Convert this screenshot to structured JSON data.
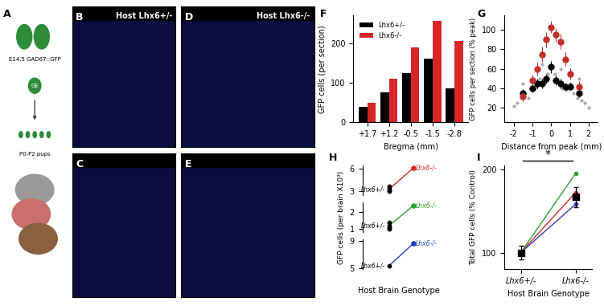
{
  "diagram": {
    "panel": "A",
    "texts": [
      "E14.5 GAD67::GFP",
      "GE",
      "P0-P2 pups"
    ]
  },
  "images": [
    {
      "panel": "B",
      "title": "Host Lhx6+/-"
    },
    {
      "panel": "C"
    },
    {
      "panel": "D",
      "title": "Host Lhx6-/-"
    },
    {
      "panel": "E"
    }
  ],
  "chart_data": [
    {
      "panel": "F",
      "type": "bar",
      "categories": [
        "+1.7",
        "+1.2",
        "-0.5",
        "-1.5",
        "-2.8"
      ],
      "xlabel": "Bregma (mm)",
      "ylabel": "GFP cells (per section)",
      "series": [
        {
          "name": "Lhx6+/-",
          "color": "#000000",
          "values": [
            40,
            75,
            125,
            160,
            85
          ]
        },
        {
          "name": "Lhx6-/-",
          "color": "#d62728",
          "values": [
            50,
            110,
            190,
            255,
            205
          ]
        }
      ],
      "ylim": [
        0,
        270
      ],
      "yticks": [
        0,
        100,
        200
      ],
      "legend": "upper left"
    },
    {
      "panel": "G",
      "type": "scatter",
      "xlabel": "Distance from peak (mm)",
      "ylabel": "GFP cells per section (% peak)",
      "xlim": [
        -2.5,
        2.5
      ],
      "xticks": [
        -2,
        -1,
        0,
        1,
        2
      ],
      "ylim": [
        5,
        115
      ],
      "yticks": [
        20,
        40,
        60,
        80,
        100
      ],
      "series": [
        {
          "color": "#aaaaaa",
          "marker": "small",
          "x": [
            -2.0,
            -1.8,
            -1.6,
            -1.4,
            -1.2,
            -1.0,
            -0.8,
            -0.6,
            -0.4,
            -0.2,
            0.2,
            0.4,
            0.6,
            0.8,
            1.0,
            1.2,
            1.4,
            1.6,
            1.8,
            2.0,
            -1.5,
            -0.5,
            0.5,
            1.5
          ],
          "values": [
            22,
            25,
            30,
            35,
            30,
            40,
            42,
            50,
            48,
            55,
            55,
            45,
            40,
            38,
            45,
            35,
            30,
            28,
            25,
            20,
            45,
            65,
            60,
            50
          ]
        },
        {
          "color": "#000000",
          "marker": "large",
          "x": [
            -1.5,
            -1.0,
            -0.75,
            -0.5,
            -0.25,
            0,
            0.25,
            0.5,
            0.75,
            1.0,
            1.5
          ],
          "values": [
            35,
            40,
            45,
            45,
            50,
            62,
            48,
            45,
            42,
            42,
            35
          ],
          "errors": [
            4,
            4,
            5,
            5,
            5,
            6,
            5,
            5,
            4,
            4,
            4
          ]
        },
        {
          "color": "#c0302a",
          "marker": "large",
          "x": [
            -1.5,
            -1.0,
            -0.75,
            -0.5,
            -0.25,
            0,
            0.25,
            0.5,
            0.75,
            1.0,
            1.5
          ],
          "values": [
            32,
            48,
            60,
            75,
            90,
            103,
            95,
            88,
            70,
            55,
            42
          ],
          "errors": [
            5,
            6,
            7,
            8,
            8,
            6,
            7,
            8,
            7,
            6,
            5
          ]
        }
      ]
    },
    {
      "panel": "H",
      "type": "paired_dot",
      "ylabel": "GFP cells (per brain X10³)",
      "xlabel": "Host Brain Genotype",
      "groups": [
        {
          "categories": [
            "Lhx6+/-",
            "Lhx6-/-"
          ],
          "color": "#d62728",
          "control_values": [
            3.6,
            3.3,
            3.1,
            3.0
          ],
          "value": 6.1,
          "ylim": [
            2.5,
            6.5
          ],
          "yticks": [
            3,
            6
          ]
        },
        {
          "categories": [
            "Lhx6+/-",
            "Lhx6-/-"
          ],
          "color": "#2ca02c",
          "control_values": [
            1.4,
            1.2,
            1.1,
            1.0
          ],
          "value": 2.4,
          "ylim": [
            0.8,
            2.6
          ],
          "yticks": [
            1,
            2
          ]
        },
        {
          "categories": [
            "Lhx6+/-",
            "Lhx6-/-"
          ],
          "color": "#1f3fbf",
          "control_values": [
            5.3
          ],
          "value": 8.6,
          "ylim": [
            4.8,
            9.2
          ],
          "yticks": [
            5,
            9
          ]
        }
      ]
    },
    {
      "panel": "I",
      "type": "paired_line",
      "categories": [
        "Lhx6+/-",
        "Lhx6-/-"
      ],
      "ylabel": "Total GFP cells (% Control)",
      "xlabel": "Host Brain Genotype",
      "ylim": [
        80,
        205
      ],
      "yticks": [
        100,
        200
      ],
      "series": [
        {
          "color": "#d62728",
          "values": [
            100,
            172
          ]
        },
        {
          "color": "#2ca02c",
          "values": [
            100,
            195
          ]
        },
        {
          "color": "#3a3ab0",
          "values": [
            100,
            158
          ]
        }
      ],
      "mean": {
        "color": "#000000",
        "values": [
          100,
          167
        ],
        "errors": [
          8,
          12
        ]
      },
      "annotation": "*"
    }
  ]
}
